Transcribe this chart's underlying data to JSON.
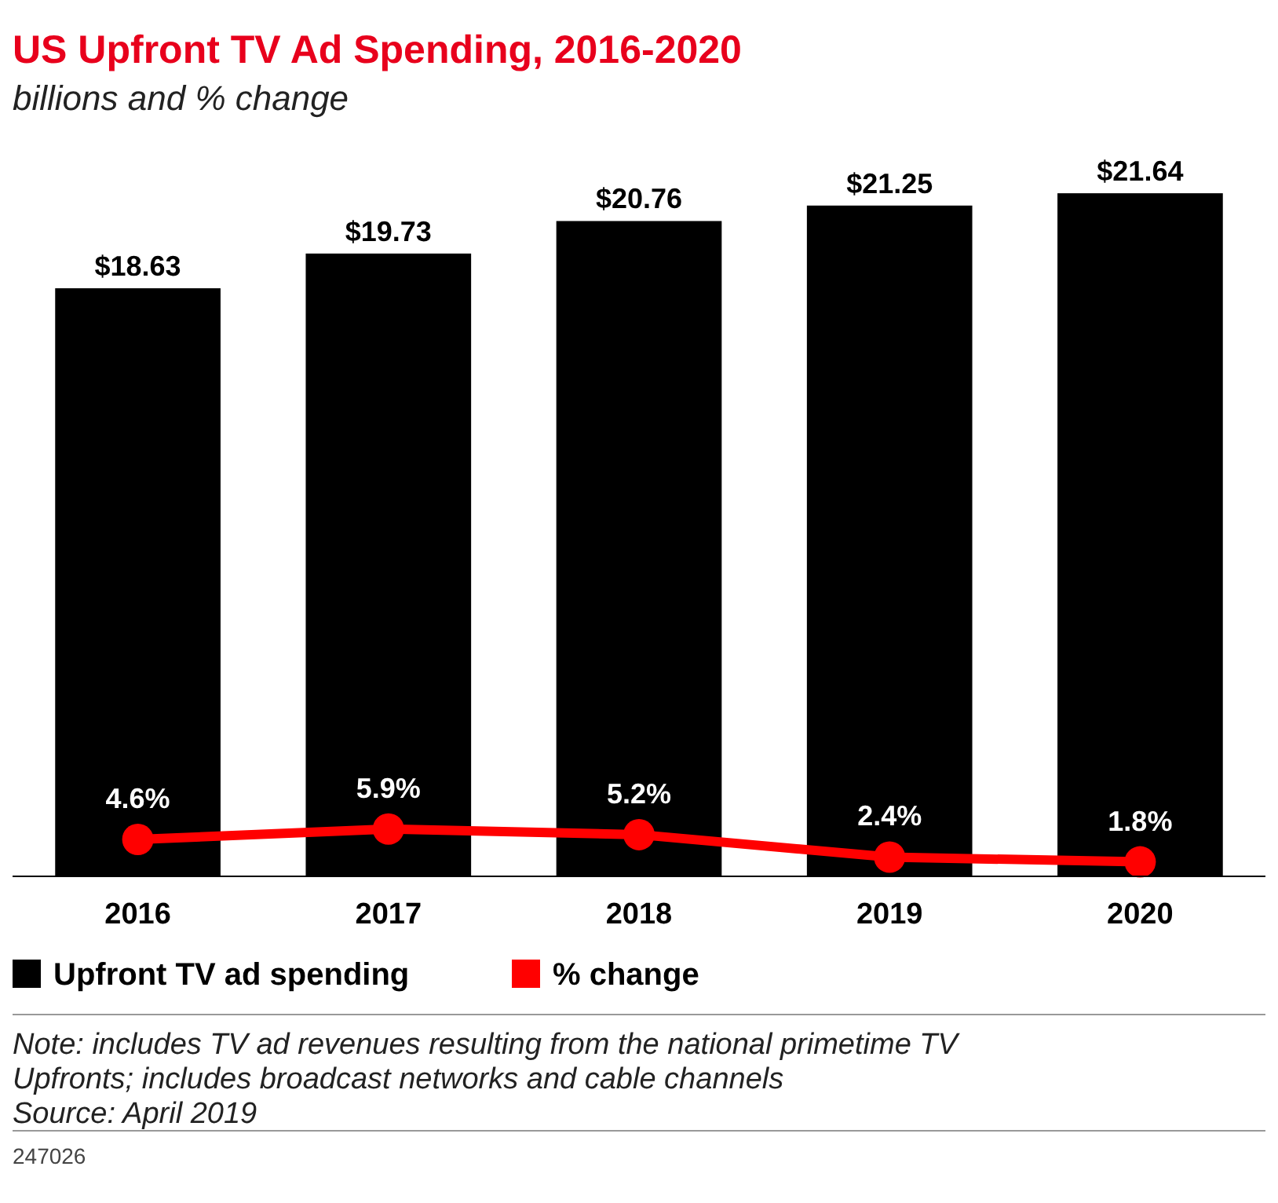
{
  "chart_data": {
    "type": "bar",
    "title": "US Upfront TV Ad Spending, 2016-2020",
    "subtitle": "billions and % change",
    "categories": [
      "2016",
      "2017",
      "2018",
      "2019",
      "2020"
    ],
    "series": [
      {
        "name": "Upfront TV ad spending",
        "color": "#000000",
        "values": [
          18.63,
          19.73,
          20.76,
          21.25,
          21.64
        ],
        "value_labels": [
          "$18.63",
          "$19.73",
          "$20.76",
          "$21.25",
          "$21.64"
        ]
      },
      {
        "name": "% change",
        "type": "line",
        "axis": "y2",
        "color": "#ff0000",
        "values": [
          4.6,
          5.9,
          5.2,
          2.4,
          1.8
        ],
        "value_labels": [
          "4.6%",
          "5.9%",
          "5.2%",
          "2.4%",
          "1.8%"
        ],
        "marker": "circle"
      }
    ],
    "legend": "bottom",
    "annotations": [
      "Note: includes TV ad revenues resulting from the national primetime TV Upfronts; includes broadcast networks and cable channels",
      "Source: April 2019",
      "247026"
    ]
  }
}
